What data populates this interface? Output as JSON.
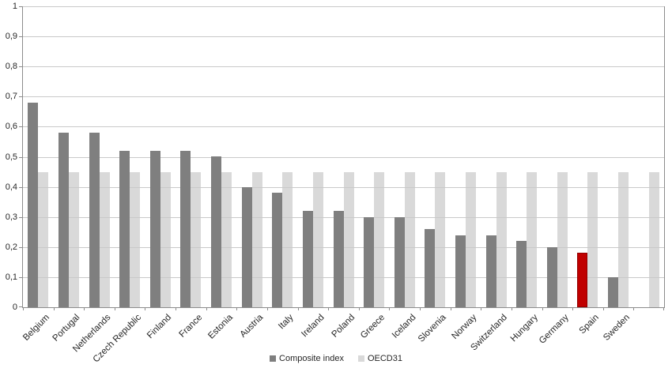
{
  "chart_data": {
    "type": "bar",
    "title": "",
    "categories": [
      "Belgium",
      "Portugal",
      "Netherlands",
      "Czech Republic",
      "Finland",
      "France",
      "Estonia",
      "Austria",
      "Italy",
      "Ireland",
      "Poland",
      "Greece",
      "Iceland",
      "Slovenia",
      "Norway",
      "Switzerland",
      "Hungary",
      "Germany",
      "Spain",
      "Sweden",
      ""
    ],
    "series": [
      {
        "name": "Composite index",
        "color": "#7F7F7F",
        "values": [
          0.68,
          0.58,
          0.58,
          0.52,
          0.52,
          0.52,
          0.5,
          0.4,
          0.38,
          0.32,
          0.32,
          0.3,
          0.3,
          0.26,
          0.24,
          0.24,
          0.22,
          0.2,
          0.18,
          0.1,
          null
        ]
      },
      {
        "name": "OECD31",
        "color": "#D9D9D9",
        "values": [
          0.45,
          0.45,
          0.45,
          0.45,
          0.45,
          0.45,
          0.45,
          0.45,
          0.45,
          0.45,
          0.45,
          0.45,
          0.45,
          0.45,
          0.45,
          0.45,
          0.45,
          0.45,
          0.45,
          0.45,
          0.45
        ]
      }
    ],
    "highlight": {
      "category": "Spain",
      "series": "Composite index",
      "color": "#C00000"
    },
    "y_axis": {
      "min": 0,
      "max": 1,
      "step": 0.1,
      "tick_labels": [
        "0",
        "0,1",
        "0,2",
        "0,3",
        "0,4",
        "0,5",
        "0,6",
        "0,7",
        "0,8",
        "0,9",
        "1"
      ],
      "decimal_separator": ","
    },
    "x_axis": {
      "label_rotation_deg": -45
    },
    "grid": true,
    "colors": {
      "gridline": "#C9C9C9",
      "axis": "#8C8C8C",
      "text": "#262626"
    },
    "legend_position": "bottom"
  }
}
